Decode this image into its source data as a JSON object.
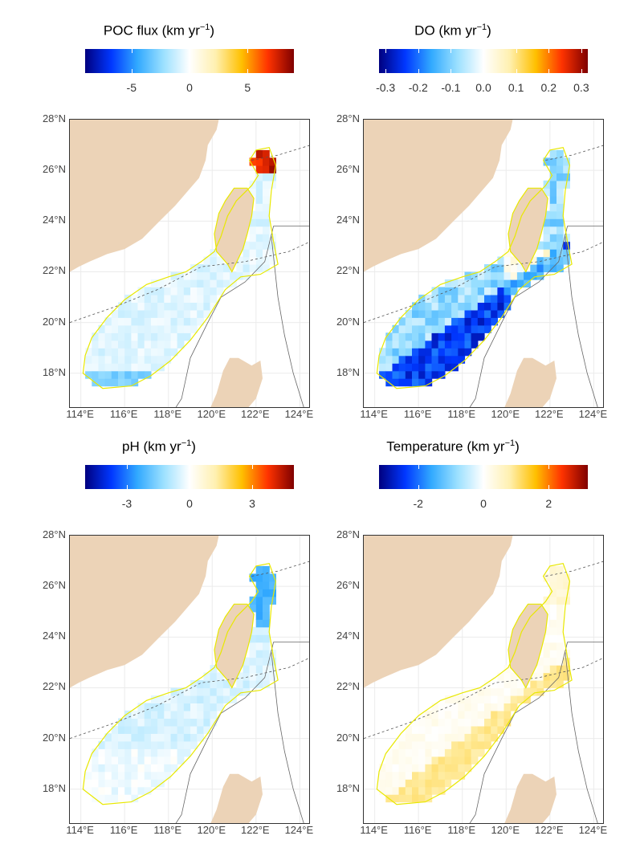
{
  "panels": [
    {
      "title": "POC flux (km yr",
      "unit_sup": "−1",
      "close": ")",
      "colorbar_ticks": [
        "-5",
        "0",
        "5"
      ],
      "scale_max": 9,
      "tick_values": [
        -5,
        0,
        5
      ],
      "pattern": "poc"
    },
    {
      "title": "DO (km yr",
      "unit_sup": "−1",
      "close": ")",
      "colorbar_ticks": [
        "-0.3",
        "-0.2",
        "-0.1",
        "0.0",
        "0.1",
        "0.2",
        "0.3"
      ],
      "scale_max": 0.32,
      "tick_values": [
        -0.3,
        -0.2,
        -0.1,
        0.0,
        0.1,
        0.2,
        0.3
      ],
      "pattern": "do"
    },
    {
      "title": "pH (km yr",
      "unit_sup": "−1",
      "close": ")",
      "colorbar_ticks": [
        "-3",
        "0",
        "3"
      ],
      "scale_max": 5,
      "tick_values": [
        -3,
        0,
        3
      ],
      "pattern": "ph"
    },
    {
      "title": "Temperature (km yr",
      "unit_sup": "−1",
      "close": ")",
      "colorbar_ticks": [
        "-2",
        "0",
        "2"
      ],
      "scale_max": 3.2,
      "tick_values": [
        -2,
        0,
        2
      ],
      "pattern": "temp"
    }
  ],
  "axes": {
    "lat_labels": [
      "28°N",
      "26°N",
      "24°N",
      "22°N",
      "20°N",
      "18°N"
    ],
    "lon_labels": [
      "114°E",
      "116°E",
      "118°E",
      "120°E",
      "122°E",
      "124°E"
    ]
  },
  "colors": {
    "land": "#ecd3b7",
    "boundary": "#e8e800",
    "ramp": [
      "#00007f",
      "#0037ff",
      "#31a9ff",
      "#9be0ff",
      "#ffffff",
      "#fff0b0",
      "#ffc000",
      "#ff3300",
      "#7f0000"
    ]
  }
}
